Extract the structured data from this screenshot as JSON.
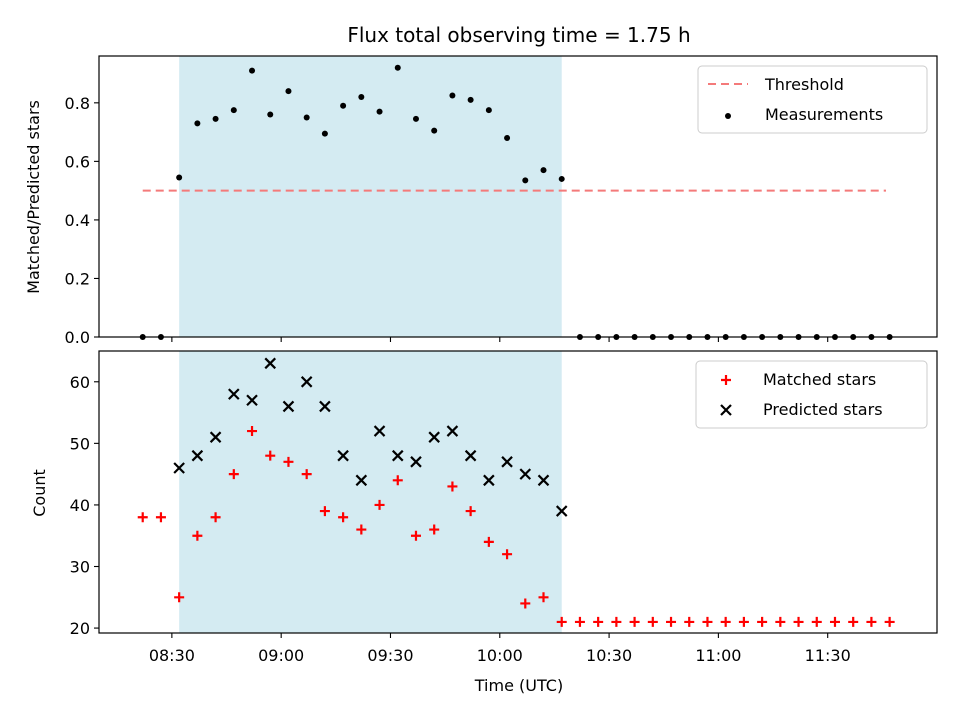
{
  "chart_data": [
    {
      "type": "scatter",
      "title": "Flux total observing time = 1.75 h",
      "xlabel": "",
      "ylabel": "Matched/Predicted stars",
      "ylim": [
        0,
        0.96
      ],
      "yticks": [
        "0.0",
        "0.2",
        "0.4",
        "0.6",
        "0.8"
      ],
      "ytick_values": [
        0.0,
        0.2,
        0.4,
        0.6,
        0.8
      ],
      "grid": false,
      "legend_position": "top-right",
      "threshold": {
        "name": "Threshold",
        "value": 0.5,
        "color": "#f47a7a",
        "x_start": "08:22",
        "x_end": "11:46"
      },
      "shaded_region": {
        "x_start": "08:32",
        "x_end": "10:17",
        "color": "#add8e6"
      },
      "series": [
        {
          "name": "Measurements",
          "color": "#000000",
          "x": [
            "08:22",
            "08:27",
            "08:32",
            "08:37",
            "08:42",
            "08:47",
            "08:52",
            "08:57",
            "09:02",
            "09:07",
            "09:12",
            "09:17",
            "09:22",
            "09:27",
            "09:32",
            "09:37",
            "09:42",
            "09:47",
            "09:52",
            "09:57",
            "10:02",
            "10:07",
            "10:12",
            "10:17",
            "10:22",
            "10:27",
            "10:32",
            "10:37",
            "10:42",
            "10:47",
            "10:52",
            "10:57",
            "11:02",
            "11:07",
            "11:12",
            "11:17",
            "11:22",
            "11:27",
            "11:32",
            "11:37",
            "11:42",
            "11:47"
          ],
          "y": [
            0.0,
            0.0,
            0.545,
            0.73,
            0.745,
            0.775,
            0.91,
            0.76,
            0.84,
            0.75,
            0.695,
            0.79,
            0.82,
            0.77,
            0.92,
            0.745,
            0.705,
            0.825,
            0.81,
            0.775,
            0.68,
            0.535,
            0.57,
            0.54,
            0.0,
            0.0,
            0.0,
            0.0,
            0.0,
            0.0,
            0.0,
            0.0,
            0.0,
            0.0,
            0.0,
            0.0,
            0.0,
            0.0,
            0.0,
            0.0,
            0.0,
            0.0
          ]
        }
      ]
    },
    {
      "type": "scatter",
      "title": "",
      "xlabel": "Time (UTC)",
      "ylabel": "Count",
      "xlim": [
        "08:10",
        "12:00"
      ],
      "ylim": [
        19.2,
        65.0
      ],
      "xticks": [
        "08:30",
        "09:00",
        "09:30",
        "10:00",
        "10:30",
        "11:00",
        "11:30"
      ],
      "yticks": [
        "20",
        "30",
        "40",
        "50",
        "60"
      ],
      "ytick_values": [
        20,
        30,
        40,
        50,
        60
      ],
      "grid": false,
      "legend_position": "top-right",
      "shaded_region": {
        "x_start": "08:32",
        "x_end": "10:17",
        "color": "#add8e6"
      },
      "series": [
        {
          "name": "Matched stars",
          "marker": "plus",
          "color": "#ff0000",
          "x": [
            "08:22",
            "08:27",
            "08:32",
            "08:37",
            "08:42",
            "08:47",
            "08:52",
            "08:57",
            "09:02",
            "09:07",
            "09:12",
            "09:17",
            "09:22",
            "09:27",
            "09:32",
            "09:37",
            "09:42",
            "09:47",
            "09:52",
            "09:57",
            "10:02",
            "10:07",
            "10:12",
            "10:17",
            "10:22",
            "10:27",
            "10:32",
            "10:37",
            "10:42",
            "10:47",
            "10:52",
            "10:57",
            "11:02",
            "11:07",
            "11:12",
            "11:17",
            "11:22",
            "11:27",
            "11:32",
            "11:37",
            "11:42",
            "11:47"
          ],
          "y": [
            38,
            38,
            25,
            35,
            38,
            45,
            52,
            48,
            47,
            45,
            39,
            38,
            36,
            40,
            44,
            35,
            36,
            43,
            39,
            34,
            32,
            24,
            25,
            21,
            21,
            21,
            21,
            21,
            21,
            21,
            21,
            21,
            21,
            21,
            21,
            21,
            21,
            21,
            21,
            21,
            21,
            21
          ]
        },
        {
          "name": "Predicted stars",
          "marker": "x",
          "color": "#000000",
          "x": [
            "08:32",
            "08:37",
            "08:42",
            "08:47",
            "08:52",
            "08:57",
            "09:02",
            "09:07",
            "09:12",
            "09:17",
            "09:22",
            "09:27",
            "09:32",
            "09:37",
            "09:42",
            "09:47",
            "09:52",
            "09:57",
            "10:02",
            "10:07",
            "10:12",
            "10:17"
          ],
          "y": [
            46,
            48,
            51,
            58,
            57,
            63,
            56,
            60,
            56,
            48,
            44,
            52,
            48,
            47,
            51,
            52,
            48,
            44,
            47,
            45,
            44,
            39
          ]
        }
      ]
    }
  ]
}
